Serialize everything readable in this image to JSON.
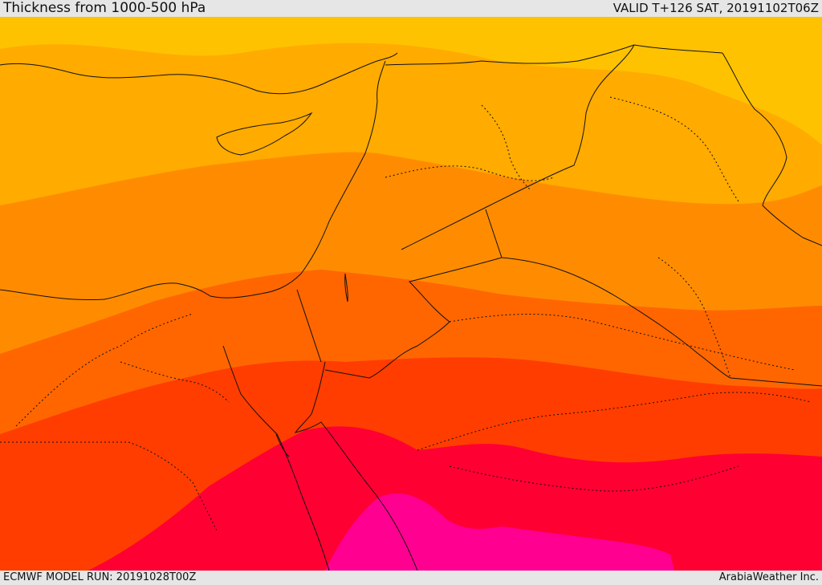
{
  "header": {
    "title": "Thickness from 1000-500 hPa",
    "valid": "VALID T+126 SAT, 20191102T06Z"
  },
  "footer": {
    "model_run": "ECMWF MODEL RUN: 20191028T00Z",
    "brand": "ArabiaWeather Inc."
  },
  "palette": {
    "band_1": "#ffc200",
    "band_2": "#ffab00",
    "band_3": "#ff8c00",
    "band_4": "#ff6600",
    "band_5": "#ff3d00",
    "band_6": "#ff0033",
    "band_7": "#ff0090",
    "border": "#111111"
  }
}
